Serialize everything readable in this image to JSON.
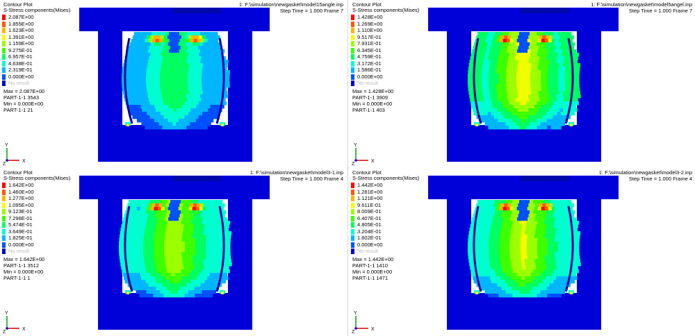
{
  "legend_colors": [
    "#ff0000",
    "#ff5a00",
    "#ffb400",
    "#f0ff00",
    "#9bff00",
    "#3cff00",
    "#00ff60",
    "#00ffd0",
    "#00b6ff",
    "#0050ff",
    "#0000d8",
    "#bdbdbd"
  ],
  "panels": [
    {
      "title": "Contour Plot",
      "result": "S-Stress components(Mises)",
      "file": "1: F:\\simulation\\newgasket\\model15angle.inp",
      "step_time": "Step Time =     1.000   Frame 7",
      "legend": [
        "2.087E+00",
        "1.855E+00",
        "1.623E+00",
        "1.391E+00",
        "1.159E+00",
        "9.275E-01",
        "6.957E-01",
        "4.638E-01",
        "2.319E-01",
        "0.000E+00",
        "No result"
      ],
      "max": "Max = 2.087E+00",
      "max_loc": "PART-1-1 3543",
      "min": "Min = 0.000E+00",
      "min_loc": "PART-1-1 21"
    },
    {
      "title": "Contour Plot",
      "result": "S-Stress components(Mises)",
      "file": "1: F:\\simulation\\newgasket\\model5angel.inp",
      "step_time": "Step Time =     1.000   Frame 7",
      "legend": [
        "1.428E+00",
        "1.269E+00",
        "1.110E+00",
        "9.517E-01",
        "7.931E-01",
        "6.345E-01",
        "4.759E-01",
        "3.172E-01",
        "1.586E-01",
        "0.000E+00",
        "No result"
      ],
      "max": "Max = 1.428E+00",
      "max_loc": "PART-1-1 3909",
      "min": "Min = 0.000E+00",
      "min_loc": "PART-1-1 403"
    },
    {
      "title": "Contour Plot",
      "result": "S-Stress components(Mises)",
      "file": "1: F:\\simulation\\newgasket\\model3-1.inp",
      "step_time": "Step Time =     1.000   Frame 4",
      "legend": [
        "1.642E+00",
        "1.460E+00",
        "1.277E+00",
        "1.095E+00",
        "9.123E-01",
        "7.298E-01",
        "5.474E-01",
        "3.649E-01",
        "1.825E-01",
        "0.000E+00",
        "No result"
      ],
      "max": "Max = 1.642E+00",
      "max_loc": "PART-1-1 3512",
      "min": "Min = 0.000E+00",
      "min_loc": "PART-1-1 1"
    },
    {
      "title": "Contour Plot",
      "result": "S-Stress components(Mises)",
      "file": "1: F:\\simulation\\newgasket\\model3-2.inp",
      "step_time": "Step Time =     1.000   Frame 4",
      "legend": [
        "1.442E+00",
        "1.281E+00",
        "1.121E+00",
        "9.611E-01",
        "8.009E-01",
        "6.407E-01",
        "4.805E-01",
        "3.204E-01",
        "1.602E-01",
        "0.000E+00",
        "No result"
      ],
      "max": "Max = 1.442E+00",
      "max_loc": "PART-1-1 1410",
      "min": "Min = 0.000E+00",
      "min_loc": "PART-1-1 1471"
    }
  ],
  "axis": {
    "y": "Y",
    "z": "Z",
    "x": "X"
  }
}
